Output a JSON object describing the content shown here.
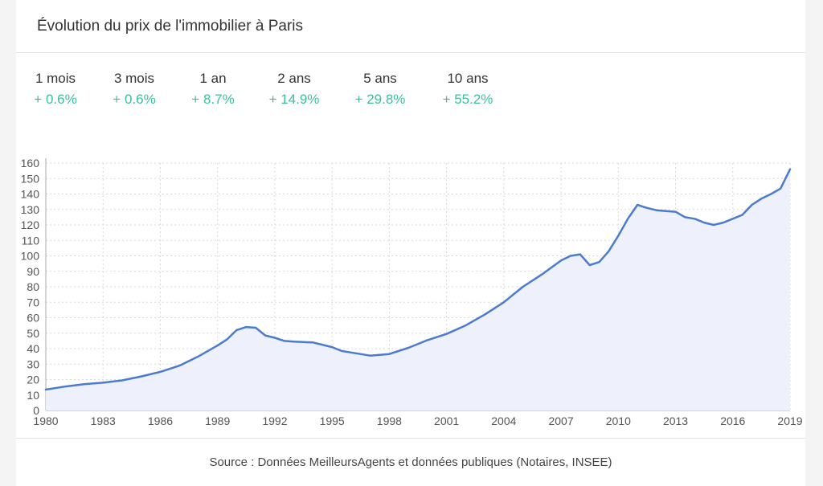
{
  "header": {
    "title": "Évolution du prix de l'immobilier à Paris"
  },
  "stats": [
    {
      "label": "1 mois",
      "value": "+ 0.6%"
    },
    {
      "label": "3 mois",
      "value": "+ 0.6%"
    },
    {
      "label": "1 an",
      "value": "+ 8.7%"
    },
    {
      "label": "2 ans",
      "value": "+ 14.9%"
    },
    {
      "label": "5 ans",
      "value": "+ 29.8%"
    },
    {
      "label": "10 ans",
      "value": "+ 55.2%"
    }
  ],
  "colors": {
    "positive": "#3bbf9f",
    "line": "#4a7bd0",
    "area": "#eef1fb",
    "grid": "#d9d9d9"
  },
  "footer": {
    "source": "Source : Données MeilleursAgents et données publiques (Notaires, INSEE)"
  },
  "chart_data": {
    "type": "area",
    "title": "",
    "xlabel": "",
    "ylabel": "",
    "xlim": [
      1980,
      2019
    ],
    "ylim": [
      0,
      160
    ],
    "grid": true,
    "x_ticks": [
      "1980",
      "1983",
      "1986",
      "1989",
      "1992",
      "1995",
      "1998",
      "2001",
      "2004",
      "2007",
      "2010",
      "2013",
      "2016",
      "2019"
    ],
    "y_ticks": [
      "0",
      "10",
      "20",
      "30",
      "40",
      "50",
      "60",
      "70",
      "80",
      "90",
      "100",
      "110",
      "120",
      "130",
      "140",
      "150",
      "160"
    ],
    "series": [
      {
        "x": [
          1980,
          1981,
          1982,
          1983,
          1984,
          1985,
          1986,
          1987,
          1988,
          1989,
          1989.5,
          1990,
          1990.5,
          1991,
          1991.5,
          1992,
          1992.5,
          1993,
          1994,
          1995,
          1995.5,
          1996,
          1997,
          1998,
          1999,
          2000,
          2001,
          2002,
          2003,
          2004,
          2005,
          2006,
          2007,
          2007.5,
          2008,
          2008.5,
          2009,
          2009.5,
          2010,
          2010.5,
          2011,
          2011.5,
          2012,
          2012.5,
          2013,
          2013.5,
          2014,
          2014.5,
          2015,
          2015.5,
          2016,
          2016.5,
          2017,
          2017.5,
          2018,
          2018.5,
          2019
        ],
        "values": [
          13.5,
          15.5,
          17,
          18,
          19.5,
          22,
          25,
          29,
          35,
          42,
          46,
          52,
          54,
          53.5,
          48.5,
          47,
          45,
          44.5,
          44,
          41,
          38.5,
          37.5,
          35.5,
          36.5,
          40.5,
          45.5,
          49.5,
          55,
          62,
          70,
          80,
          88,
          97,
          100,
          101,
          94,
          96,
          103,
          113,
          124,
          133,
          131,
          129.5,
          129,
          128.5,
          125,
          124,
          121.5,
          120,
          121.5,
          124,
          126.5,
          133,
          137,
          140,
          143.5,
          156
        ]
      }
    ]
  }
}
